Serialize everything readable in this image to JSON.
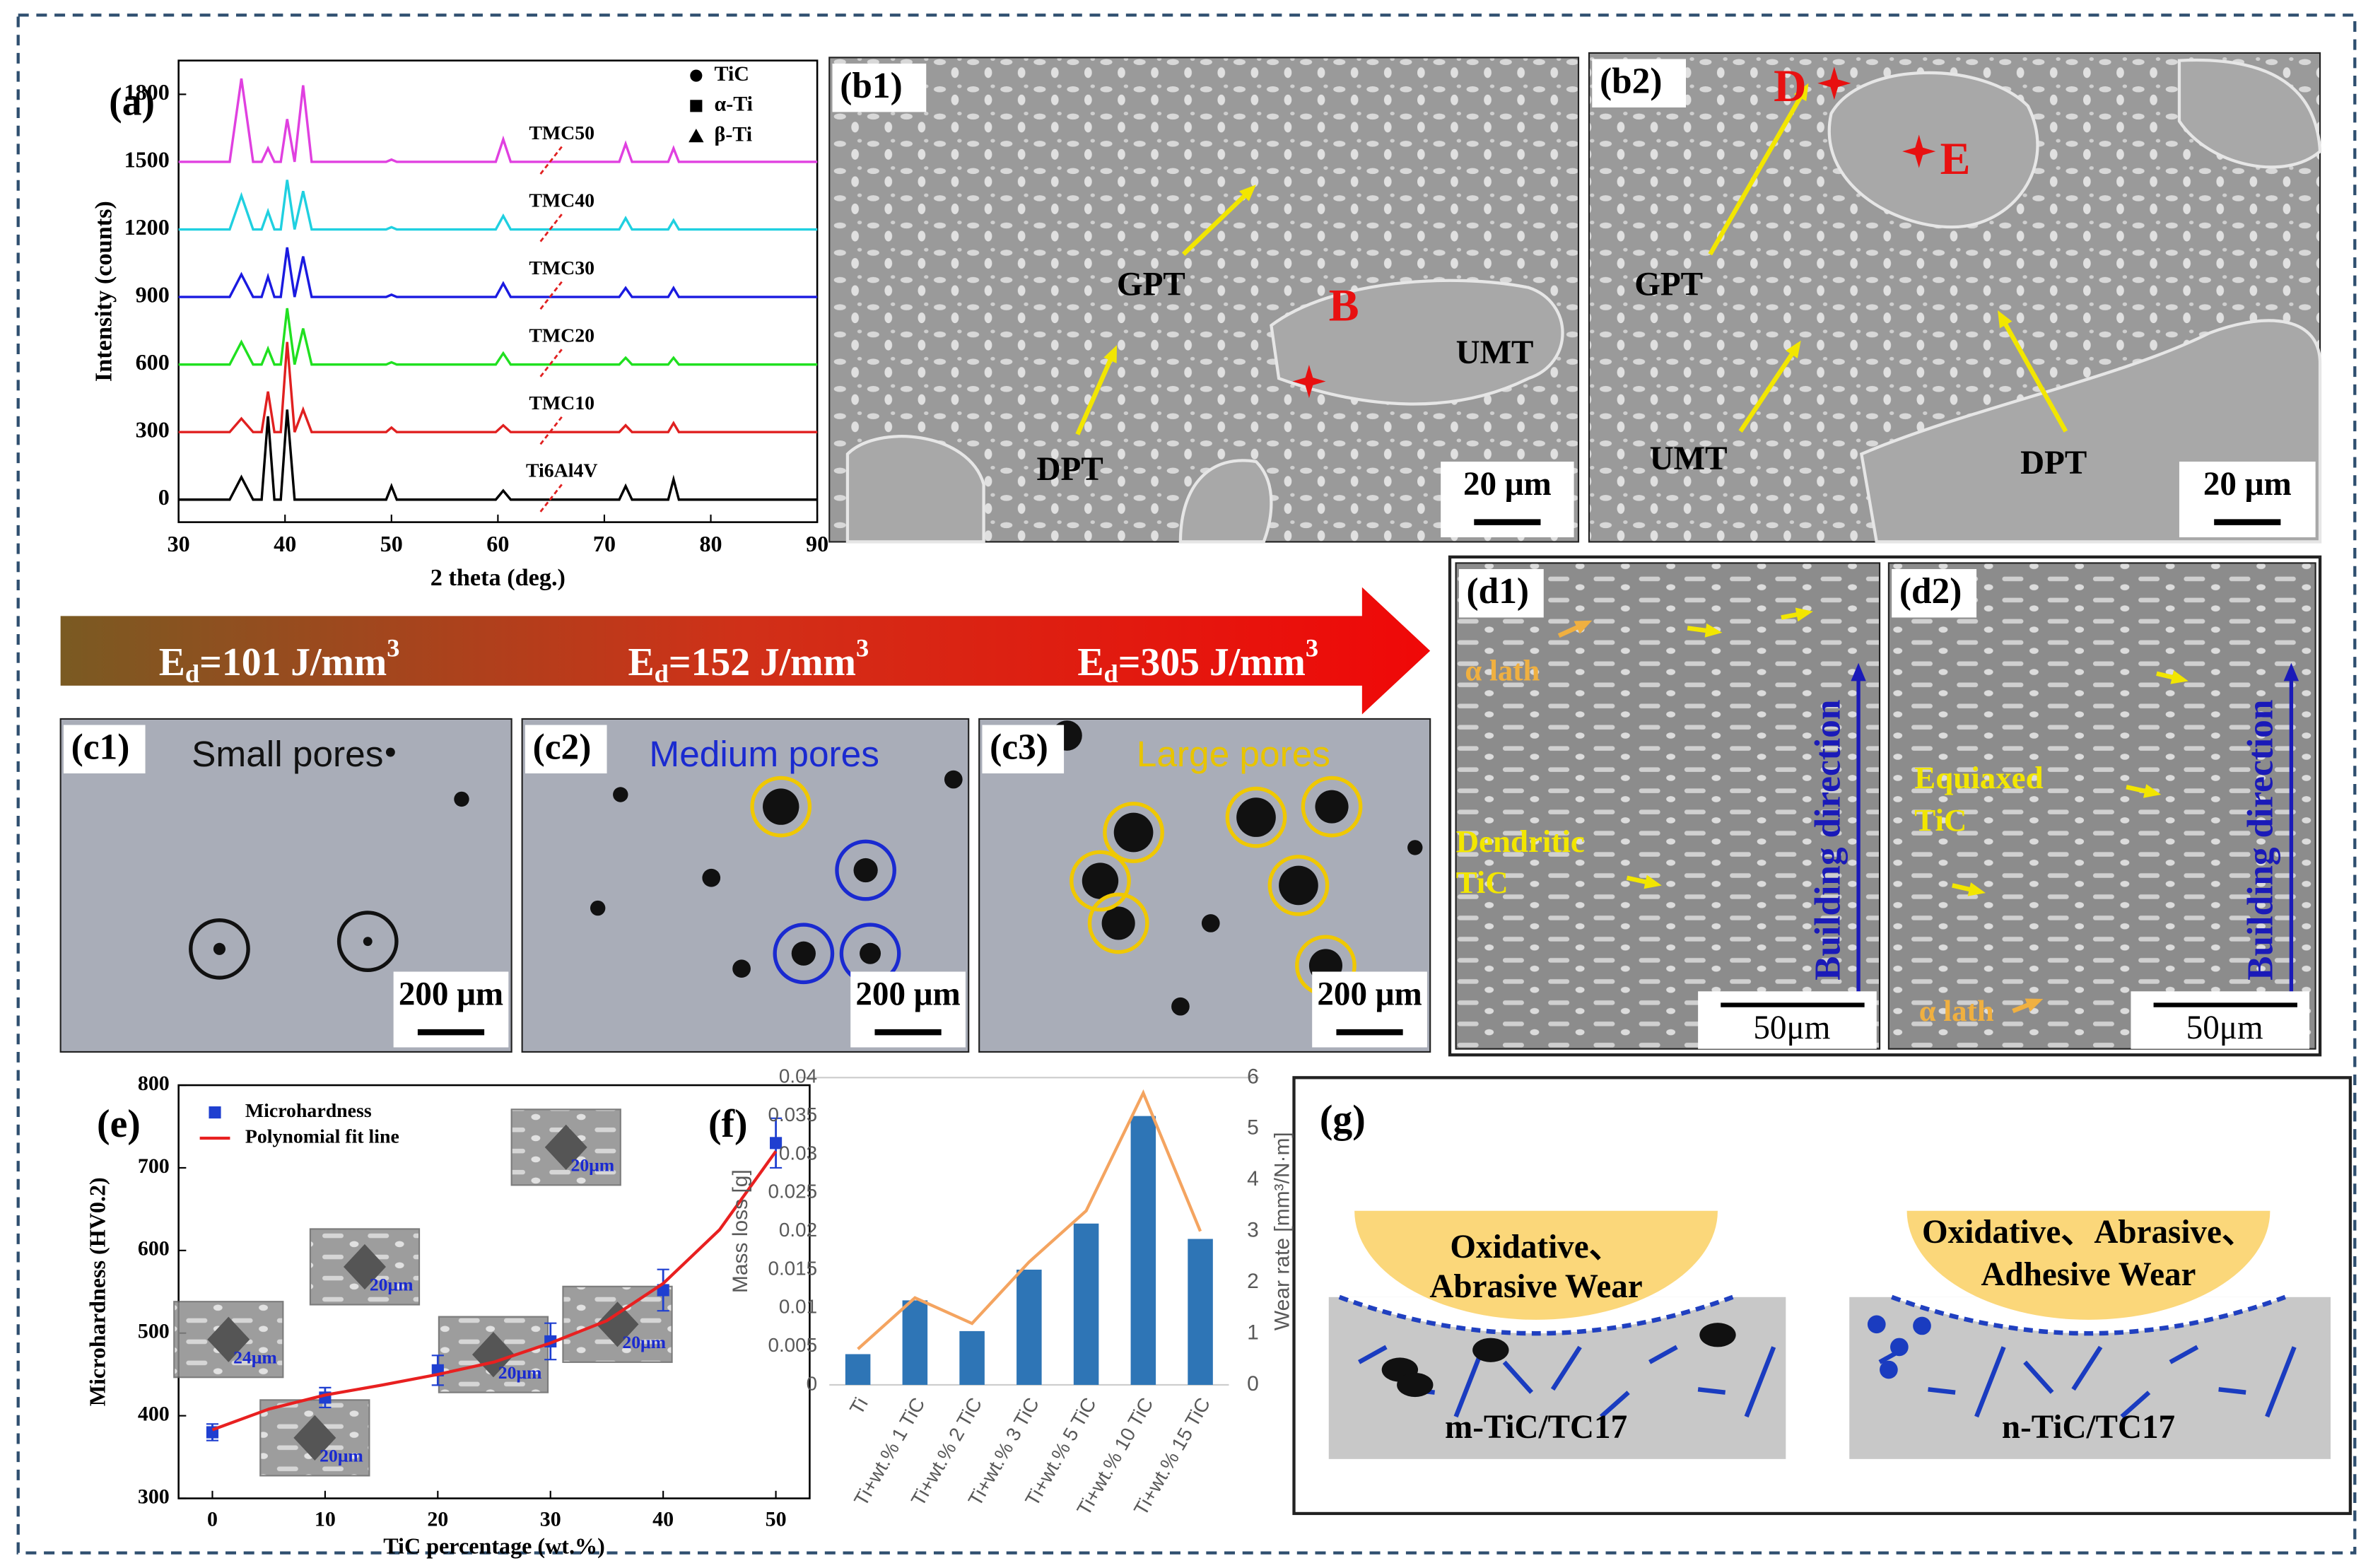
{
  "chart_data": [
    {
      "type": "line",
      "panel_label": "(a)",
      "x_label": "2 theta (deg.)",
      "y_label": "Intensity (counts)",
      "x": [
        30,
        34.8,
        35.9,
        37,
        37.8,
        38.4,
        39,
        39.6,
        40.2,
        40.9,
        41.7,
        42.5,
        49.5,
        50,
        50.5,
        59.8,
        60.5,
        61.2,
        71.4,
        72,
        72.6,
        76,
        76.5,
        77,
        90
      ],
      "series": [
        {
          "name": "TMC50",
          "color": "#e040e0",
          "values": [
            1500,
            1500,
            1870,
            1500,
            1500,
            1560,
            1500,
            1500,
            1690,
            1500,
            1840,
            1500,
            1500,
            1510,
            1500,
            1500,
            1600,
            1500,
            1500,
            1580,
            1500,
            1500,
            1560,
            1500,
            1500
          ]
        },
        {
          "name": "TMC40",
          "color": "#20d0e0",
          "values": [
            1200,
            1200,
            1350,
            1200,
            1200,
            1280,
            1200,
            1200,
            1420,
            1200,
            1370,
            1200,
            1200,
            1210,
            1200,
            1200,
            1260,
            1200,
            1200,
            1250,
            1200,
            1200,
            1240,
            1200,
            1200
          ]
        },
        {
          "name": "TMC30",
          "color": "#1a1ae0",
          "values": [
            900,
            900,
            1000,
            900,
            900,
            990,
            900,
            900,
            1120,
            900,
            1080,
            900,
            900,
            910,
            900,
            900,
            960,
            900,
            900,
            940,
            900,
            900,
            940,
            900,
            900
          ]
        },
        {
          "name": "TMC20",
          "color": "#20e020",
          "values": [
            600,
            600,
            700,
            600,
            600,
            670,
            600,
            600,
            850,
            600,
            760,
            600,
            600,
            610,
            600,
            600,
            650,
            600,
            600,
            630,
            600,
            600,
            630,
            600,
            600
          ]
        },
        {
          "name": "TMC10",
          "color": "#e02020",
          "values": [
            300,
            300,
            360,
            300,
            300,
            480,
            300,
            300,
            700,
            300,
            400,
            300,
            300,
            320,
            300,
            300,
            330,
            300,
            300,
            330,
            300,
            300,
            340,
            300,
            300
          ]
        },
        {
          "name": "Ti6Al4V",
          "color": "#000000",
          "values": [
            0,
            0,
            100,
            0,
            0,
            370,
            0,
            0,
            400,
            0,
            0,
            0,
            0,
            60,
            0,
            0,
            40,
            0,
            0,
            60,
            0,
            0,
            90,
            0,
            0
          ]
        }
      ],
      "legend": [
        {
          "name": "TiC",
          "marker": "circle"
        },
        {
          "name": "α-Ti",
          "marker": "square"
        },
        {
          "name": "β-Ti",
          "marker": "triangle"
        }
      ],
      "xlim": [
        30,
        90
      ],
      "xticks": [
        30,
        40,
        50,
        60,
        70,
        80,
        90
      ],
      "ylim": [
        -100,
        1950
      ],
      "yticks": [
        0,
        300,
        600,
        900,
        1200,
        1500,
        1800
      ]
    },
    {
      "type": "scatter",
      "panel_label": "(e)",
      "x_label": "TiC percentage (wt.%)",
      "y_label": "Microhardness (HV0.2)",
      "series": [
        {
          "name": "Microhardness",
          "color": "#1f3fd0",
          "marker": "square",
          "x": [
            0,
            10,
            20,
            30,
            40,
            50
          ],
          "values": [
            380,
            422,
            455,
            490,
            552,
            730
          ],
          "errors": [
            10,
            12,
            18,
            22,
            25,
            30
          ]
        },
        {
          "name": "Polynomial fit line",
          "color": "#e82020",
          "style": "line",
          "x": [
            0,
            5,
            10,
            15,
            20,
            25,
            30,
            35,
            40,
            45,
            50
          ],
          "values": [
            383,
            408,
            425,
            437,
            450,
            465,
            488,
            515,
            560,
            625,
            720
          ]
        }
      ],
      "insets": [
        "24μm",
        "20μm",
        "20μm",
        "20μm",
        "20μm",
        "20μm"
      ],
      "xlim": [
        -3,
        53
      ],
      "xticks": [
        0,
        10,
        20,
        30,
        40,
        50
      ],
      "ylim": [
        300,
        800
      ],
      "yticks": [
        300,
        400,
        500,
        600,
        700,
        800
      ]
    },
    {
      "type": "bar",
      "panel_label": "(f)",
      "y_label": "Mass loss [g]",
      "y2_label": "Wear rate [mm³/N·m]",
      "categories": [
        "Ti",
        "Ti+wt.% 1 TiC",
        "Ti+wt.% 2 TiC",
        "Ti+wt.% 3 TiC",
        "Ti+wt.% 5 TiC",
        "Ti+wt.% 10 TiC",
        "Ti+wt.% 15 TiC"
      ],
      "series": [
        {
          "color": "#2e75b6",
          "style": "bar",
          "values": [
            0.004,
            0.011,
            0.007,
            0.015,
            0.021,
            0.035,
            0.019
          ]
        },
        {
          "color": "#f4a460",
          "style": "line",
          "axis": "y2",
          "values": [
            0.7,
            1.7,
            1.2,
            2.4,
            3.4,
            5.7,
            3.0
          ]
        }
      ],
      "ylim": [
        0,
        0.04
      ],
      "yticks": [
        0,
        0.005,
        0.01,
        0.015,
        0.02,
        0.025,
        0.03,
        0.035,
        0.04
      ],
      "y2lim": [
        0,
        6
      ],
      "y2ticks": [
        0,
        1,
        2,
        3,
        4,
        5,
        6
      ]
    }
  ],
  "panels": {
    "b1": {
      "label": "(b1)",
      "annotations": [
        "GPT",
        "B",
        "UMT",
        "DPT"
      ],
      "scale_bar": "20 μm"
    },
    "b2": {
      "label": "(b2)",
      "annotations": [
        "D",
        "E",
        "GPT",
        "UMT",
        "DPT"
      ],
      "scale_bar": "20 μm"
    },
    "energy_arrow": [
      {
        "symbol": "E",
        "subscript": "d",
        "text": "=101 J/mm",
        "superscript": "3"
      },
      {
        "symbol": "E",
        "subscript": "d",
        "text": "=152 J/mm",
        "superscript": "3"
      },
      {
        "symbol": "E",
        "subscript": "d",
        "text": "=305 J/mm",
        "superscript": "3"
      }
    ],
    "c1": {
      "label": "(c1)",
      "caption": "Small pores",
      "scale_bar": "200 μm"
    },
    "c2": {
      "label": "(c2)",
      "caption": "Medium pores",
      "scale_bar": "200 μm"
    },
    "c3": {
      "label": "(c3)",
      "caption": "Large pores",
      "scale_bar": "200 μm"
    },
    "d1": {
      "label": "(d1)",
      "annotations": [
        "α lath",
        "Dendritic",
        "TiC"
      ],
      "direction": "Building direction",
      "scale_bar": "50μm"
    },
    "d2": {
      "label": "(d2)",
      "annotations": [
        "Equiaxed",
        "TiC",
        "α lath"
      ],
      "direction": "Building direction",
      "scale_bar": "50μm"
    },
    "g": {
      "label": "(g)",
      "left": {
        "wear_lines": [
          "Oxidative、",
          "Abrasive Wear"
        ],
        "material": "m-TiC/TC17"
      },
      "right": {
        "wear_lines": [
          "Oxidative、Abrasive、",
          "Adhesive Wear"
        ],
        "material": "n-TiC/TC17"
      }
    }
  }
}
